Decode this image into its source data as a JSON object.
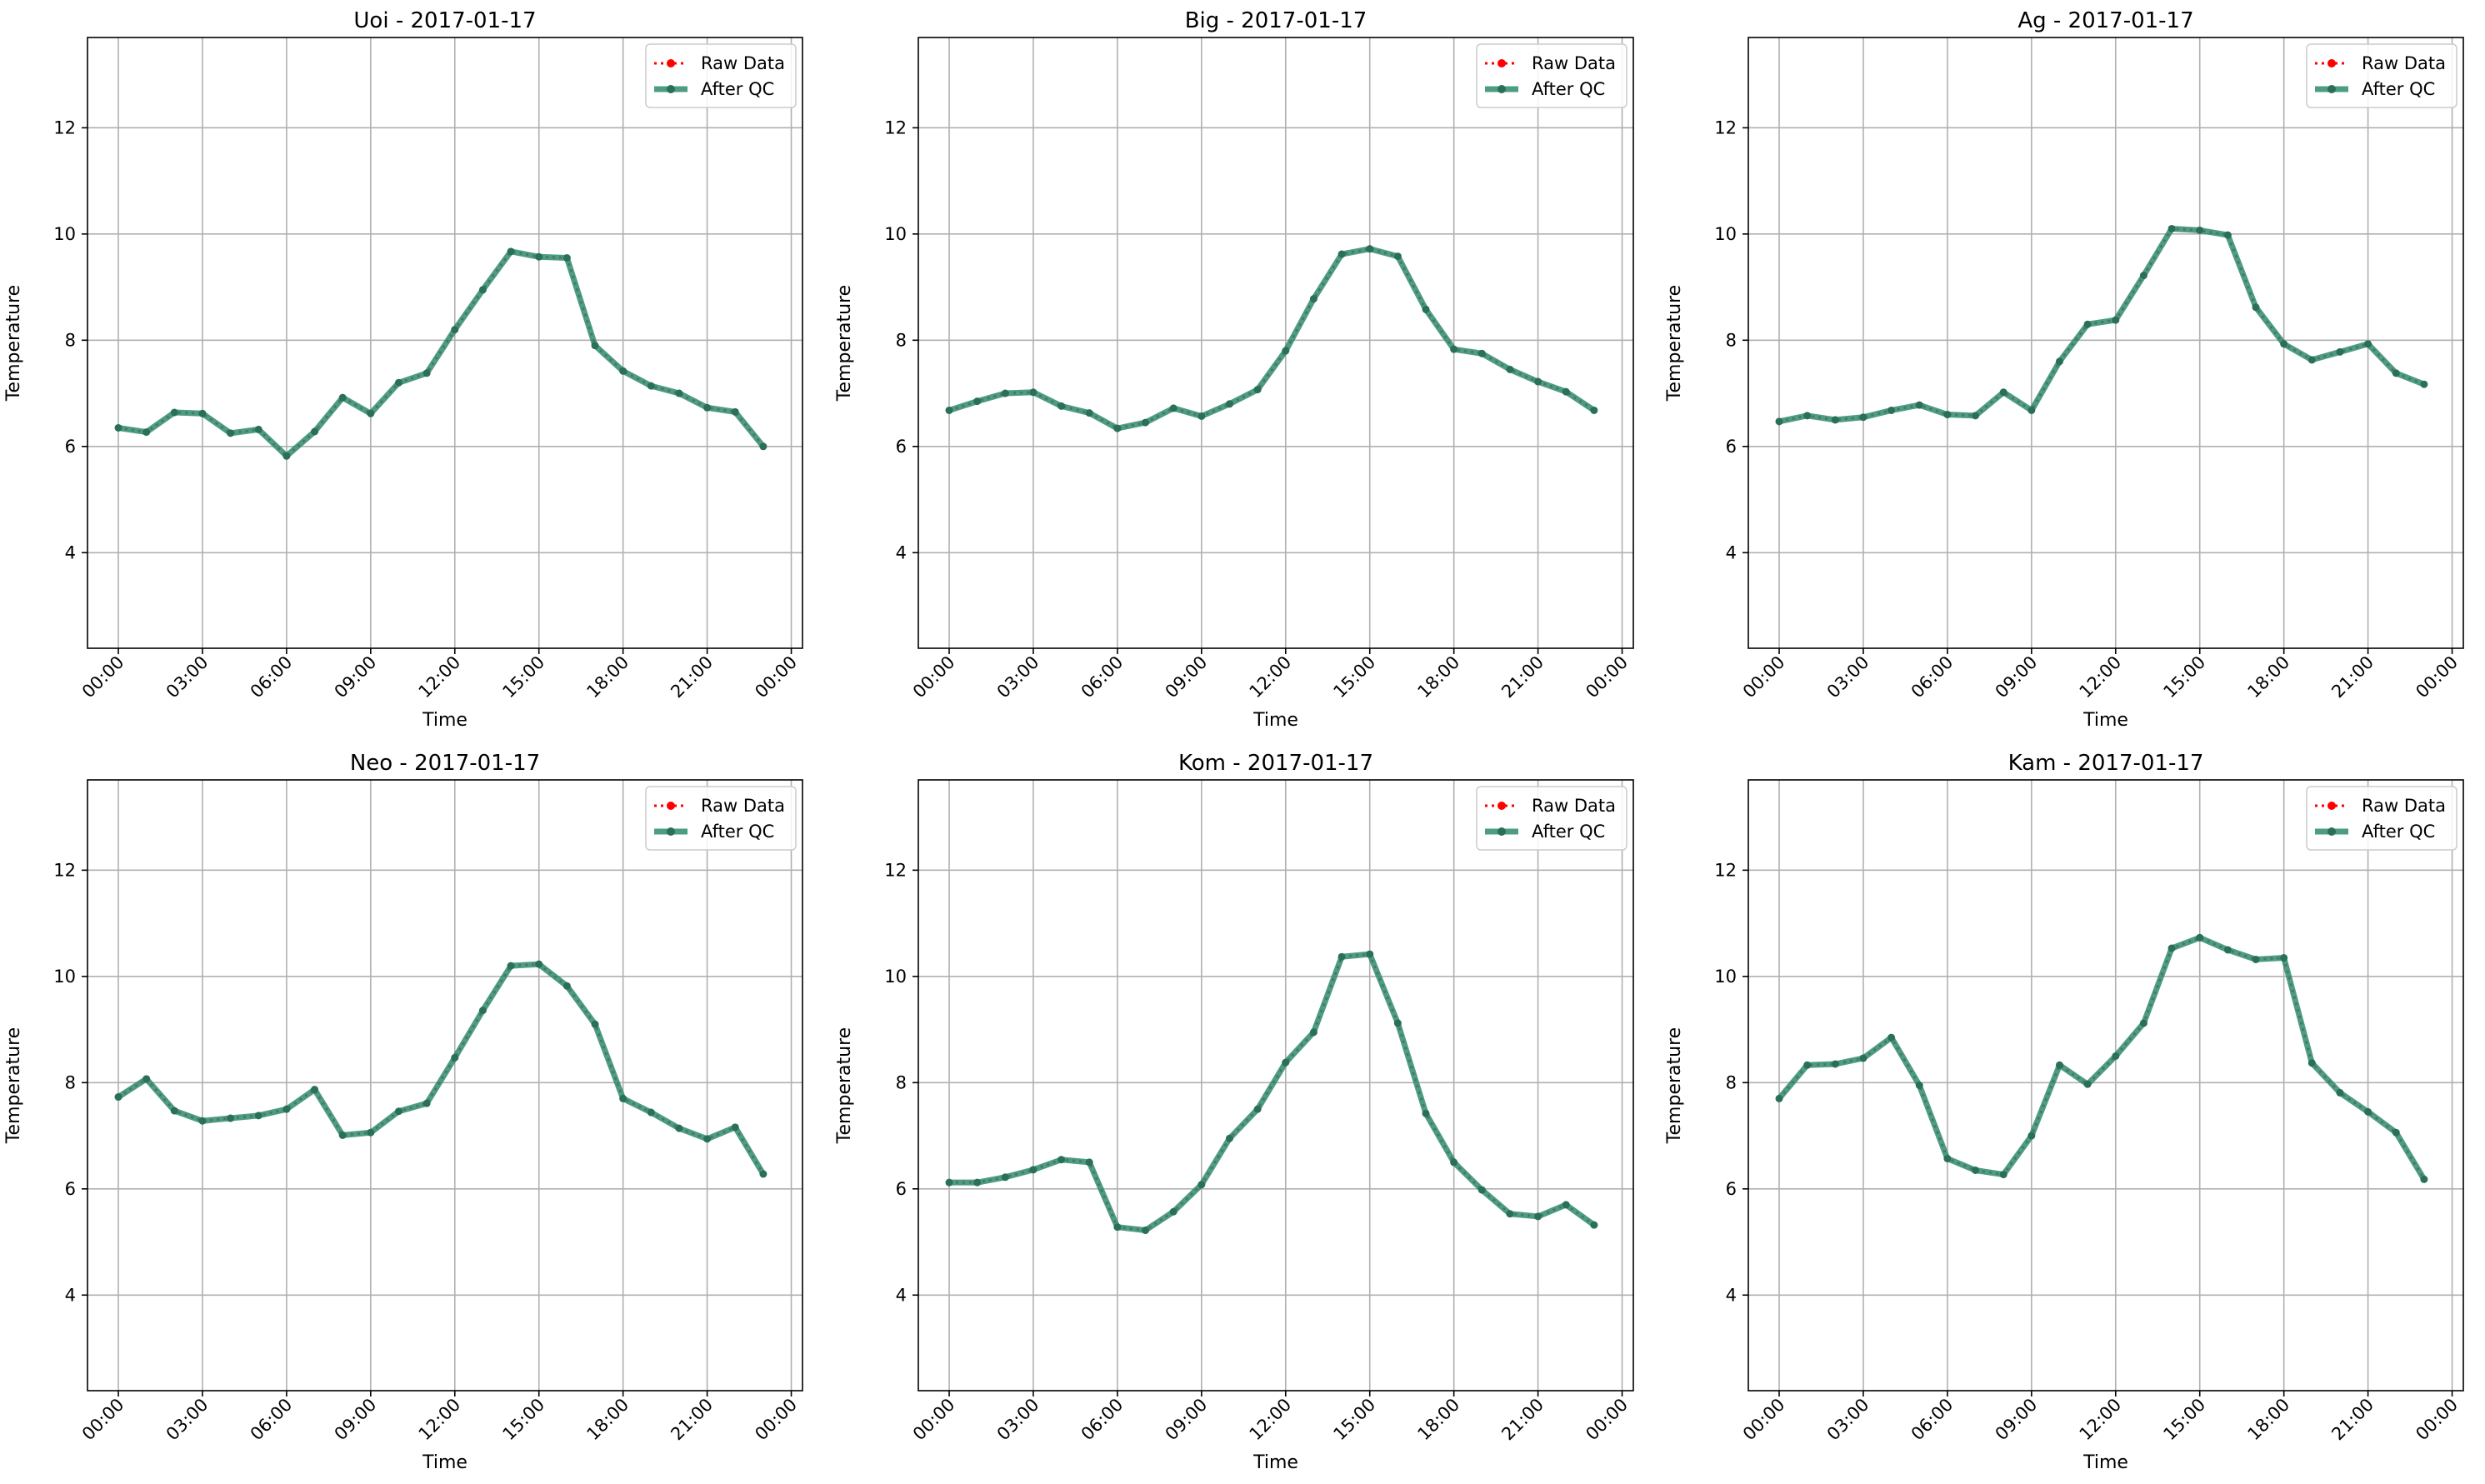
{
  "figure": {
    "background": "#ffffff",
    "raw_color": "#ff0000",
    "qc_color": "#2e8b6e"
  },
  "chart_data": [
    {
      "type": "line",
      "title": "Uoi - 2017-01-17",
      "xlabel": "Time",
      "ylabel": "Temperature",
      "x": [
        "00:00",
        "01:00",
        "02:00",
        "03:00",
        "04:00",
        "05:00",
        "06:00",
        "07:00",
        "08:00",
        "09:00",
        "10:00",
        "11:00",
        "12:00",
        "13:00",
        "14:00",
        "15:00",
        "16:00",
        "17:00",
        "18:00",
        "19:00",
        "20:00",
        "21:00",
        "22:00",
        "23:00"
      ],
      "xticks": [
        "00:00",
        "03:00",
        "06:00",
        "09:00",
        "12:00",
        "15:00",
        "18:00",
        "21:00",
        "00:00"
      ],
      "yticks": [
        "4",
        "6",
        "8",
        "10",
        "12"
      ],
      "ylim": [
        2.2,
        13.7
      ],
      "grid": true,
      "legend": "top-right",
      "legend_entries": [
        "Raw Data",
        "After QC"
      ],
      "series": [
        {
          "name": "Raw Data",
          "values": [
            6.35,
            6.27,
            6.64,
            6.62,
            6.25,
            6.32,
            5.82,
            6.28,
            6.92,
            6.62,
            7.2,
            7.38,
            8.2,
            8.95,
            9.67,
            9.57,
            9.55,
            7.9,
            7.42,
            7.14,
            7.0,
            6.73,
            6.65,
            6.0
          ]
        },
        {
          "name": "After QC",
          "values": [
            6.35,
            6.27,
            6.64,
            6.62,
            6.25,
            6.32,
            5.82,
            6.28,
            6.92,
            6.62,
            7.2,
            7.38,
            8.2,
            8.95,
            9.67,
            9.57,
            9.55,
            7.9,
            7.42,
            7.14,
            7.0,
            6.73,
            6.65,
            6.0
          ]
        }
      ]
    },
    {
      "type": "line",
      "title": "Big - 2017-01-17",
      "xlabel": "Time",
      "ylabel": "Temperature",
      "x": [
        "00:00",
        "01:00",
        "02:00",
        "03:00",
        "04:00",
        "05:00",
        "06:00",
        "07:00",
        "08:00",
        "09:00",
        "10:00",
        "11:00",
        "12:00",
        "13:00",
        "14:00",
        "15:00",
        "16:00",
        "17:00",
        "18:00",
        "19:00",
        "20:00",
        "21:00",
        "22:00",
        "23:00"
      ],
      "xticks": [
        "00:00",
        "03:00",
        "06:00",
        "09:00",
        "12:00",
        "15:00",
        "18:00",
        "21:00",
        "00:00"
      ],
      "yticks": [
        "4",
        "6",
        "8",
        "10",
        "12"
      ],
      "ylim": [
        2.2,
        13.7
      ],
      "grid": true,
      "legend": "top-right",
      "legend_entries": [
        "Raw Data",
        "After QC"
      ],
      "series": [
        {
          "name": "Raw Data",
          "values": [
            6.68,
            6.85,
            7.0,
            7.02,
            6.76,
            6.63,
            6.34,
            6.45,
            6.72,
            6.57,
            6.8,
            7.07,
            7.8,
            8.78,
            9.62,
            9.72,
            9.58,
            8.58,
            7.83,
            7.75,
            7.45,
            7.22,
            7.03,
            6.68
          ]
        },
        {
          "name": "After QC",
          "values": [
            6.68,
            6.85,
            7.0,
            7.02,
            6.76,
            6.63,
            6.34,
            6.45,
            6.72,
            6.57,
            6.8,
            7.07,
            7.8,
            8.78,
            9.62,
            9.72,
            9.58,
            8.58,
            7.83,
            7.75,
            7.45,
            7.22,
            7.03,
            6.68
          ]
        }
      ]
    },
    {
      "type": "line",
      "title": "Ag - 2017-01-17",
      "xlabel": "Time",
      "ylabel": "Temperature",
      "x": [
        "00:00",
        "01:00",
        "02:00",
        "03:00",
        "04:00",
        "05:00",
        "06:00",
        "07:00",
        "08:00",
        "09:00",
        "10:00",
        "11:00",
        "12:00",
        "13:00",
        "14:00",
        "15:00",
        "16:00",
        "17:00",
        "18:00",
        "19:00",
        "20:00",
        "21:00",
        "22:00",
        "23:00"
      ],
      "xticks": [
        "00:00",
        "03:00",
        "06:00",
        "09:00",
        "12:00",
        "15:00",
        "18:00",
        "21:00",
        "00:00"
      ],
      "yticks": [
        "4",
        "6",
        "8",
        "10",
        "12"
      ],
      "ylim": [
        2.2,
        13.7
      ],
      "grid": true,
      "legend": "top-right",
      "legend_entries": [
        "Raw Data",
        "After QC"
      ],
      "series": [
        {
          "name": "Raw Data",
          "values": [
            6.47,
            6.58,
            6.5,
            6.55,
            6.68,
            6.78,
            6.6,
            6.58,
            7.02,
            6.68,
            7.6,
            8.3,
            8.38,
            9.22,
            10.1,
            10.07,
            9.98,
            8.62,
            7.93,
            7.63,
            7.78,
            7.93,
            7.38,
            7.17
          ]
        },
        {
          "name": "After QC",
          "values": [
            6.47,
            6.58,
            6.5,
            6.55,
            6.68,
            6.78,
            6.6,
            6.58,
            7.02,
            6.68,
            7.6,
            8.3,
            8.38,
            9.22,
            10.1,
            10.07,
            9.98,
            8.62,
            7.93,
            7.63,
            7.78,
            7.93,
            7.38,
            7.17
          ]
        }
      ]
    },
    {
      "type": "line",
      "title": "Neo - 2017-01-17",
      "xlabel": "Time",
      "ylabel": "Temperature",
      "x": [
        "00:00",
        "01:00",
        "02:00",
        "03:00",
        "04:00",
        "05:00",
        "06:00",
        "07:00",
        "08:00",
        "09:00",
        "10:00",
        "11:00",
        "12:00",
        "13:00",
        "14:00",
        "15:00",
        "16:00",
        "17:00",
        "18:00",
        "19:00",
        "20:00",
        "21:00",
        "22:00",
        "23:00"
      ],
      "xticks": [
        "00:00",
        "03:00",
        "06:00",
        "09:00",
        "12:00",
        "15:00",
        "18:00",
        "21:00",
        "00:00"
      ],
      "yticks": [
        "4",
        "6",
        "8",
        "10",
        "12"
      ],
      "ylim": [
        2.2,
        13.7
      ],
      "grid": true,
      "legend": "top-right",
      "legend_entries": [
        "Raw Data",
        "After QC"
      ],
      "series": [
        {
          "name": "Raw Data",
          "values": [
            7.73,
            8.07,
            7.47,
            7.28,
            7.33,
            7.38,
            7.5,
            7.87,
            7.01,
            7.06,
            7.46,
            7.61,
            8.47,
            9.36,
            10.2,
            10.23,
            9.82,
            9.1,
            7.7,
            7.44,
            7.14,
            6.94,
            7.16,
            6.28
          ]
        },
        {
          "name": "After QC",
          "values": [
            7.73,
            8.07,
            7.47,
            7.28,
            7.33,
            7.38,
            7.5,
            7.87,
            7.01,
            7.06,
            7.46,
            7.61,
            8.47,
            9.36,
            10.2,
            10.23,
            9.82,
            9.1,
            7.7,
            7.44,
            7.14,
            6.94,
            7.16,
            6.28
          ]
        }
      ]
    },
    {
      "type": "line",
      "title": "Kom - 2017-01-17",
      "xlabel": "Time",
      "ylabel": "Temperature",
      "x": [
        "00:00",
        "01:00",
        "02:00",
        "03:00",
        "04:00",
        "05:00",
        "06:00",
        "07:00",
        "08:00",
        "09:00",
        "10:00",
        "11:00",
        "12:00",
        "13:00",
        "14:00",
        "15:00",
        "16:00",
        "17:00",
        "18:00",
        "19:00",
        "20:00",
        "21:00",
        "22:00",
        "23:00"
      ],
      "xticks": [
        "00:00",
        "03:00",
        "06:00",
        "09:00",
        "12:00",
        "15:00",
        "18:00",
        "21:00",
        "00:00"
      ],
      "yticks": [
        "4",
        "6",
        "8",
        "10",
        "12"
      ],
      "ylim": [
        2.2,
        13.7
      ],
      "grid": true,
      "legend": "top-right",
      "legend_entries": [
        "Raw Data",
        "After QC"
      ],
      "series": [
        {
          "name": "Raw Data",
          "values": [
            6.12,
            6.12,
            6.22,
            6.36,
            6.55,
            6.5,
            5.28,
            5.22,
            5.57,
            6.08,
            6.95,
            7.5,
            8.38,
            8.95,
            10.37,
            10.42,
            9.12,
            7.42,
            6.5,
            5.98,
            5.53,
            5.48,
            5.7,
            5.32
          ]
        },
        {
          "name": "After QC",
          "values": [
            6.12,
            6.12,
            6.22,
            6.36,
            6.55,
            6.5,
            5.28,
            5.22,
            5.57,
            6.08,
            6.95,
            7.5,
            8.38,
            8.95,
            10.37,
            10.42,
            9.12,
            7.42,
            6.5,
            5.98,
            5.53,
            5.48,
            5.7,
            5.32
          ]
        }
      ]
    },
    {
      "type": "line",
      "title": "Kam - 2017-01-17",
      "xlabel": "Time",
      "ylabel": "Temperature",
      "x": [
        "00:00",
        "01:00",
        "02:00",
        "03:00",
        "04:00",
        "05:00",
        "06:00",
        "07:00",
        "08:00",
        "09:00",
        "10:00",
        "11:00",
        "12:00",
        "13:00",
        "14:00",
        "15:00",
        "16:00",
        "17:00",
        "18:00",
        "19:00",
        "20:00",
        "21:00",
        "22:00",
        "23:00"
      ],
      "xticks": [
        "00:00",
        "03:00",
        "06:00",
        "09:00",
        "12:00",
        "15:00",
        "18:00",
        "21:00",
        "00:00"
      ],
      "yticks": [
        "4",
        "6",
        "8",
        "10",
        "12"
      ],
      "ylim": [
        2.2,
        13.7
      ],
      "grid": true,
      "legend": "top-right",
      "legend_entries": [
        "Raw Data",
        "After QC"
      ],
      "series": [
        {
          "name": "Raw Data",
          "values": [
            7.7,
            8.33,
            8.35,
            8.46,
            8.85,
            7.95,
            6.57,
            6.35,
            6.27,
            7.0,
            8.33,
            7.97,
            8.5,
            9.12,
            10.53,
            10.73,
            10.5,
            10.32,
            10.35,
            8.37,
            7.81,
            7.45,
            7.06,
            6.18
          ]
        },
        {
          "name": "After QC",
          "values": [
            7.7,
            8.33,
            8.35,
            8.46,
            8.85,
            7.95,
            6.57,
            6.35,
            6.27,
            7.0,
            8.33,
            7.97,
            8.5,
            9.12,
            10.53,
            10.73,
            10.5,
            10.32,
            10.35,
            8.37,
            7.81,
            7.45,
            7.06,
            6.18
          ]
        }
      ]
    }
  ]
}
